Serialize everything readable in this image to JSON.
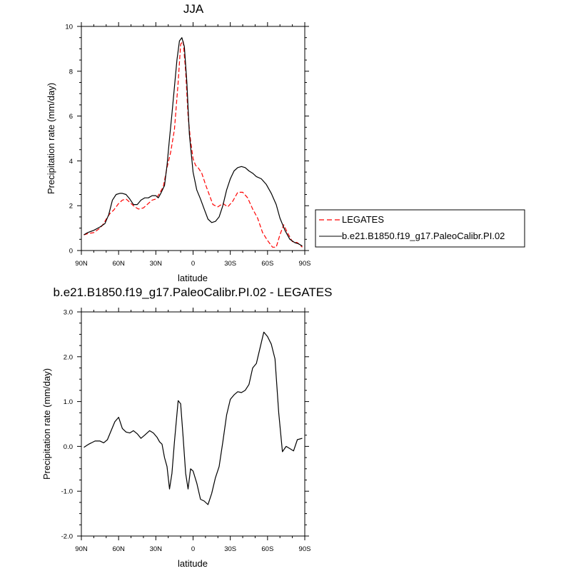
{
  "chart_data": [
    {
      "type": "line",
      "title": "JJA",
      "xlabel": "latitude",
      "ylabel": "Precipitation rate (mm/day)",
      "xlim": [
        90,
        -90
      ],
      "ylim": [
        0,
        10
      ],
      "x_ticks": [
        90,
        60,
        30,
        0,
        -30,
        -60,
        -90
      ],
      "x_tick_labels": [
        "90N",
        "60N",
        "30N",
        "0",
        "30S",
        "60S",
        "90S"
      ],
      "y_ticks": [
        0,
        2,
        4,
        6,
        8,
        10
      ],
      "y_tick_labels": [
        "0",
        "2",
        "4",
        "6",
        "8",
        "10"
      ],
      "legend_position": "right",
      "series": [
        {
          "name": "LEGATES",
          "color": "#ff0000",
          "dash": "dashed",
          "x": [
            88,
            85,
            80,
            75,
            72,
            70,
            67,
            64,
            60,
            57,
            54,
            50,
            47,
            44,
            40,
            37,
            33,
            30,
            27,
            24,
            21,
            18,
            15,
            12,
            10,
            8,
            6,
            4,
            2,
            0,
            -2,
            -4,
            -7,
            -10,
            -13,
            -16,
            -20,
            -24,
            -28,
            -32,
            -36,
            -40,
            -44,
            -48,
            -52,
            -56,
            -60,
            -64,
            -67,
            -70,
            -73,
            -76,
            -80,
            -84,
            -88
          ],
          "y": [
            0.7,
            0.75,
            0.8,
            1.0,
            1.2,
            1.4,
            1.65,
            1.8,
            2.1,
            2.25,
            2.3,
            2.1,
            1.95,
            1.85,
            1.9,
            2.05,
            2.25,
            2.3,
            2.55,
            2.85,
            3.7,
            4.4,
            5.4,
            7.5,
            9.2,
            9.35,
            8.0,
            6.0,
            4.9,
            4.1,
            3.8,
            3.7,
            3.45,
            2.95,
            2.5,
            2.05,
            1.95,
            2.1,
            1.95,
            2.2,
            2.6,
            2.6,
            2.35,
            1.85,
            1.45,
            0.8,
            0.45,
            0.15,
            0.15,
            0.7,
            1.15,
            0.8,
            0.4,
            0.35,
            0.15
          ]
        },
        {
          "name": "b.e21.B1850.f19_g17.PaleoCalibr.PI.02",
          "color": "#000000",
          "dash": "solid",
          "x": [
            88,
            85,
            80,
            75,
            71,
            68,
            65,
            62,
            59,
            57,
            54,
            51,
            48,
            45,
            42,
            39,
            36,
            33,
            30,
            28,
            26,
            23,
            21,
            19,
            17,
            15,
            13,
            11,
            9,
            7,
            5,
            3,
            0,
            -3,
            -6,
            -9,
            -12,
            -15,
            -18,
            -21,
            -24,
            -27,
            -30,
            -33,
            -36,
            -39,
            -42,
            -45,
            -48,
            -51,
            -55,
            -59,
            -63,
            -67,
            -70,
            -74,
            -78,
            -82,
            -85,
            -88
          ],
          "y": [
            0.7,
            0.8,
            0.9,
            1.05,
            1.2,
            1.6,
            2.25,
            2.5,
            2.55,
            2.55,
            2.5,
            2.3,
            2.05,
            2.05,
            2.25,
            2.35,
            2.35,
            2.45,
            2.45,
            2.35,
            2.55,
            2.9,
            3.8,
            5.0,
            6.1,
            7.3,
            8.5,
            9.35,
            9.5,
            9.1,
            7.5,
            5.2,
            3.5,
            2.7,
            2.3,
            1.85,
            1.4,
            1.25,
            1.3,
            1.5,
            2.0,
            2.7,
            3.2,
            3.55,
            3.7,
            3.75,
            3.7,
            3.55,
            3.45,
            3.3,
            3.2,
            2.95,
            2.55,
            2.05,
            1.45,
            0.9,
            0.5,
            0.35,
            0.3,
            0.2
          ]
        }
      ]
    },
    {
      "type": "line",
      "title": "b.e21.B1850.f19_g17.PaleoCalibr.PI.02 - LEGATES",
      "xlabel": "latitude",
      "ylabel": "Precipitation rate (mm/day)",
      "xlim": [
        90,
        -90
      ],
      "ylim": [
        -2.0,
        3.0
      ],
      "x_ticks": [
        90,
        60,
        30,
        0,
        -30,
        -60,
        -90
      ],
      "x_tick_labels": [
        "90N",
        "60N",
        "30N",
        "0",
        "30S",
        "60S",
        "90S"
      ],
      "y_ticks": [
        -2,
        -1,
        0,
        1,
        2,
        3
      ],
      "y_tick_labels": [
        "-2.0",
        "-1.0",
        "0.0",
        "1.0",
        "2.0",
        "3.0"
      ],
      "series": [
        {
          "color": "#000000",
          "dash": "solid",
          "x": [
            88,
            84,
            79,
            75,
            72,
            69,
            66,
            63,
            60,
            57,
            54,
            51,
            48,
            45,
            42,
            39,
            35,
            32,
            29,
            27,
            25,
            23,
            21,
            19,
            17,
            15,
            12,
            10,
            8,
            6,
            4,
            2,
            0,
            -3,
            -6,
            -9,
            -12,
            -15,
            -18,
            -21,
            -24,
            -27,
            -30,
            -33,
            -36,
            -39,
            -42,
            -45,
            -48,
            -51,
            -54,
            -57,
            -60,
            -63,
            -66,
            -69,
            -72,
            -75,
            -78,
            -81,
            -84,
            -88
          ],
          "y": [
            -0.02,
            0.05,
            0.12,
            0.12,
            0.08,
            0.15,
            0.35,
            0.55,
            0.65,
            0.4,
            0.32,
            0.3,
            0.35,
            0.28,
            0.18,
            0.25,
            0.35,
            0.3,
            0.2,
            0.1,
            0.05,
            -0.25,
            -0.45,
            -0.95,
            -0.6,
            0.1,
            1.02,
            0.95,
            0.2,
            -0.6,
            -0.95,
            -0.5,
            -0.55,
            -0.82,
            -1.18,
            -1.22,
            -1.3,
            -1.05,
            -0.7,
            -0.45,
            0.1,
            0.7,
            1.05,
            1.15,
            1.22,
            1.2,
            1.25,
            1.38,
            1.75,
            1.85,
            2.2,
            2.55,
            2.45,
            2.28,
            1.95,
            0.75,
            -0.12,
            0.0,
            -0.05,
            -0.1,
            0.15,
            0.18
          ]
        }
      ]
    }
  ]
}
